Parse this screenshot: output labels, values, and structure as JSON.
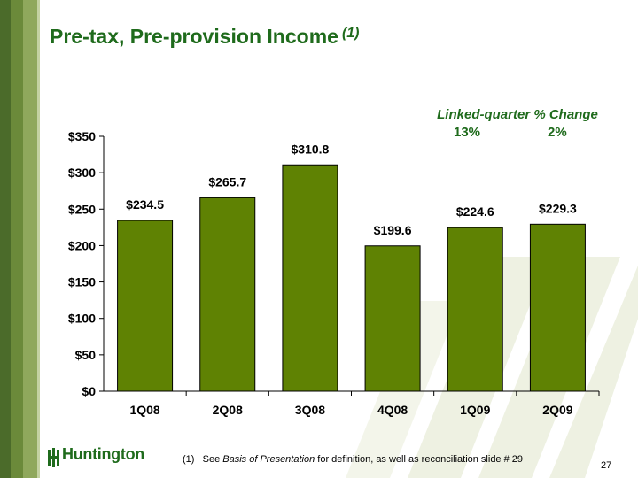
{
  "slide": {
    "title": "Pre-tax, Pre-provision Income",
    "title_note": "(1)",
    "page_number": "27"
  },
  "linked_quarter": {
    "title": "Linked-quarter % Change",
    "values": [
      "13%",
      "2%"
    ]
  },
  "footnote": {
    "marker": "(1)",
    "prefix": "See",
    "emphasis": "Basis of Presentation",
    "suffix": "for definition, as well as reconciliation slide # 29"
  },
  "logo": {
    "text": "Huntington"
  },
  "colors": {
    "bar": "#5f8203",
    "title": "#1f6b1c",
    "stripe_dark": "#4b6b2a",
    "stripe_mid": "#6b8a3a",
    "stripe_light": "#8fa85c",
    "watermark": "#eef1e2"
  },
  "chart_data": {
    "type": "bar",
    "categories": [
      "1Q08",
      "2Q08",
      "3Q08",
      "4Q08",
      "1Q09",
      "2Q09"
    ],
    "values": [
      234.5,
      265.7,
      310.8,
      199.6,
      224.6,
      229.3
    ],
    "data_labels": [
      "$234.5",
      "$265.7",
      "$310.8",
      "$199.6",
      "$224.6",
      "$229.3"
    ],
    "y_ticks": [
      0,
      50,
      100,
      150,
      200,
      250,
      300,
      350
    ],
    "y_tick_labels": [
      "$0",
      "$50",
      "$100",
      "$150",
      "$200",
      "$250",
      "$300",
      "$350"
    ],
    "ylim": [
      0,
      350
    ],
    "grid": false,
    "legend": "none"
  }
}
